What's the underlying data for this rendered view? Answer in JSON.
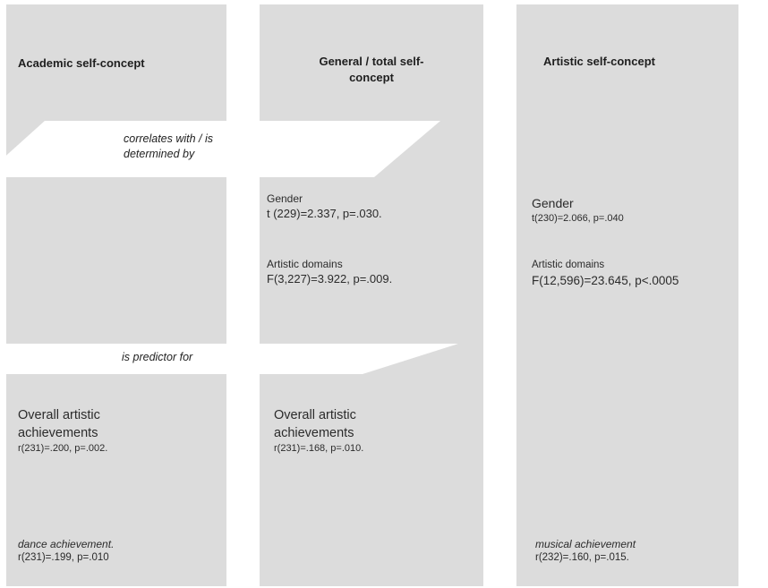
{
  "columns": {
    "academic": {
      "heading": "Academic self-concept",
      "predict_title": "Overall artistic achievements",
      "predict_stat": "r(231)=.200, p=.002.",
      "specific_title": "dance achievement.",
      "specific_stat": "r(231)=.199, p=.010"
    },
    "general": {
      "heading_line1": "General / total self-",
      "heading_line2": "concept",
      "gender_title": "Gender",
      "gender_stat": "t (229)=2.337, p=.030.",
      "domains_title": "Artistic domains",
      "domains_stat": "F(3,227)=3.922, p=.009.",
      "predict_title": "Overall artistic achievements",
      "predict_stat": "r(231)=.168, p=.010."
    },
    "artistic": {
      "heading": "Artistic self-concept",
      "gender_title": "Gender",
      "gender_stat": "t(230)=2.066, p=.040",
      "domains_title": "Artistic domains",
      "domains_stat": "F(12,596)=23.645, p<.0005",
      "specific_title": "musical achievement",
      "specific_stat": "r(232)=.160, p=.015."
    }
  },
  "connectors": {
    "correlates_line1": "correlates with / is",
    "correlates_line2": "determined by",
    "predictor": "is predictor for"
  },
  "colors": {
    "column_fill": "#dcdcdc",
    "band_fill": "#ffffff",
    "background": "#ffffff"
  }
}
